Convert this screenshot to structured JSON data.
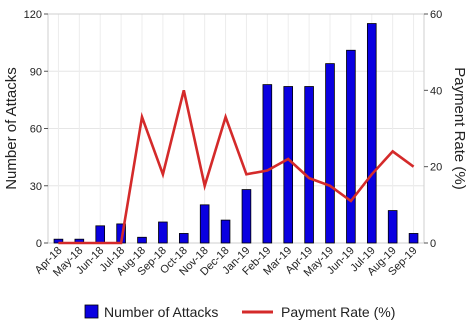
{
  "chart_data": {
    "type": "bar",
    "categories": [
      "Apr-18",
      "May-18",
      "Jun-18",
      "Jul-18",
      "Aug-18",
      "Sep-18",
      "Oct-18",
      "Nov-18",
      "Dec-18",
      "Jan-19",
      "Feb-19",
      "Mar-19",
      "Apr-19",
      "May-19",
      "Jun-19",
      "Jul-19",
      "Aug-19",
      "Sep-19"
    ],
    "series": [
      {
        "name": "Number of Attacks",
        "type": "bar",
        "axis": "left",
        "color": "#0a00e0",
        "values": [
          2,
          2,
          9,
          10,
          3,
          11,
          5,
          20,
          12,
          28,
          83,
          82,
          82,
          94,
          101,
          115,
          17,
          5
        ]
      },
      {
        "name": "Payment Rate (%)",
        "type": "line",
        "axis": "right",
        "color": "#d42a2a",
        "values": [
          0,
          0,
          0,
          0,
          33,
          18,
          40,
          15,
          33,
          18,
          19,
          22,
          17,
          15,
          11,
          18,
          24,
          20
        ]
      }
    ],
    "ylabel": "Number of Attacks",
    "y2label": "Payment Rate (%)",
    "ylim": [
      0,
      120
    ],
    "y2lim": [
      0,
      60
    ],
    "yticks": [
      0,
      30,
      60,
      90,
      120
    ],
    "y2ticks": [
      0,
      20,
      40,
      60
    ],
    "grid": true,
    "legend": "bottom"
  }
}
